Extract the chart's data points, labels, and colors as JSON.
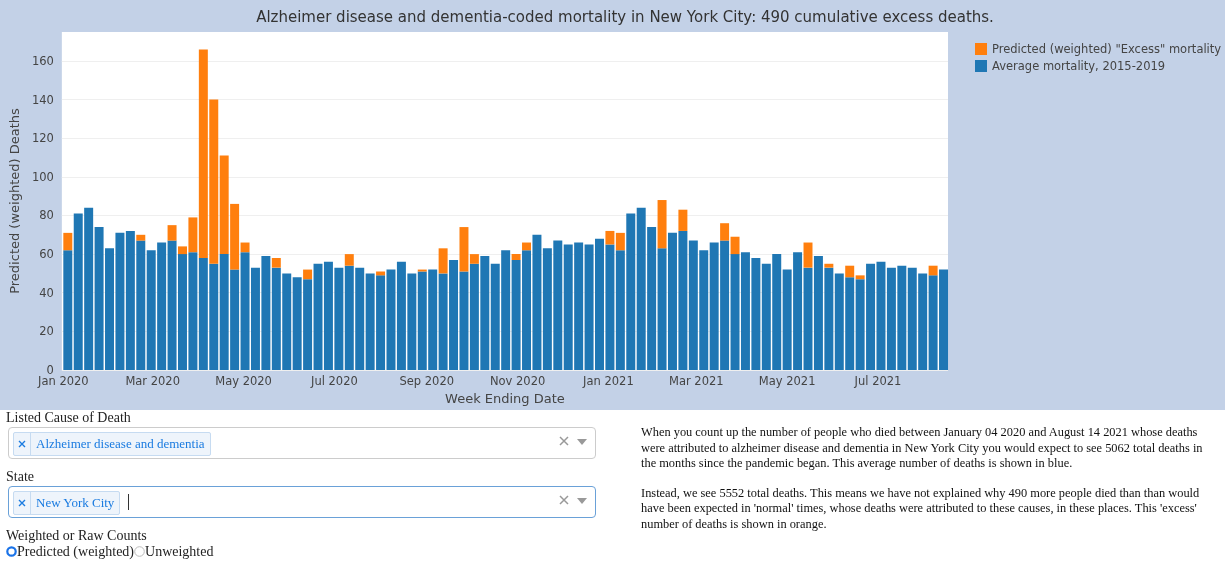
{
  "chart_data": {
    "type": "bar",
    "stacked": true,
    "title": "Alzheimer disease and dementia-coded mortality in New York City: 490 cumulative excess deaths.",
    "xlabel": "Week Ending Date",
    "ylabel": "Predicted (weighted) Deaths",
    "x": [
      "2020-01-04",
      "2020-01-11",
      "2020-01-18",
      "2020-01-25",
      "2020-02-01",
      "2020-02-08",
      "2020-02-15",
      "2020-02-22",
      "2020-02-29",
      "2020-03-07",
      "2020-03-14",
      "2020-03-21",
      "2020-03-28",
      "2020-04-04",
      "2020-04-11",
      "2020-04-18",
      "2020-04-25",
      "2020-05-02",
      "2020-05-09",
      "2020-05-16",
      "2020-05-23",
      "2020-05-30",
      "2020-06-06",
      "2020-06-13",
      "2020-06-20",
      "2020-06-27",
      "2020-07-04",
      "2020-07-11",
      "2020-07-18",
      "2020-07-25",
      "2020-08-01",
      "2020-08-08",
      "2020-08-15",
      "2020-08-22",
      "2020-08-29",
      "2020-09-05",
      "2020-09-12",
      "2020-09-19",
      "2020-09-26",
      "2020-10-03",
      "2020-10-10",
      "2020-10-17",
      "2020-10-24",
      "2020-10-31",
      "2020-11-07",
      "2020-11-14",
      "2020-11-21",
      "2020-11-28",
      "2020-12-05",
      "2020-12-12",
      "2020-12-19",
      "2020-12-26",
      "2021-01-02",
      "2021-01-09",
      "2021-01-16",
      "2021-01-23",
      "2021-01-30",
      "2021-02-06",
      "2021-02-13",
      "2021-02-20",
      "2021-02-27",
      "2021-03-06",
      "2021-03-13",
      "2021-03-20",
      "2021-03-27",
      "2021-04-03",
      "2021-04-10",
      "2021-04-17",
      "2021-04-24",
      "2021-05-01",
      "2021-05-08",
      "2021-05-15",
      "2021-05-22",
      "2021-05-29",
      "2021-06-05",
      "2021-06-12",
      "2021-06-19",
      "2021-06-26",
      "2021-07-03",
      "2021-07-10",
      "2021-07-17",
      "2021-07-24",
      "2021-07-31",
      "2021-08-07",
      "2021-08-14"
    ],
    "series": [
      {
        "name": "Average mortality, 2015-2019",
        "color": "#1f77b4",
        "values": [
          62,
          81,
          84,
          74,
          63,
          71,
          72,
          67,
          62,
          66,
          67,
          60,
          61,
          58,
          55,
          60,
          52,
          61,
          53,
          59,
          53,
          50,
          48,
          47,
          55,
          56,
          53,
          54,
          53,
          50,
          49,
          52,
          56,
          50,
          51,
          52,
          50,
          57,
          51,
          55,
          59,
          55,
          62,
          57,
          62,
          70,
          63,
          67,
          65,
          66,
          65,
          68,
          65,
          62,
          81,
          84,
          74,
          63,
          71,
          72,
          67,
          62,
          66,
          67,
          60,
          61,
          58,
          55,
          60,
          52,
          61,
          53,
          59,
          53,
          50,
          48,
          47,
          55,
          56,
          53,
          54,
          53,
          50,
          49,
          52
        ]
      },
      {
        "name": "Predicted (weighted) \"Excess\" mortality",
        "color": "#ff7f0e",
        "values": [
          9,
          null,
          null,
          null,
          null,
          null,
          null,
          3,
          null,
          null,
          8,
          4,
          18,
          108,
          85,
          51,
          34,
          5,
          null,
          null,
          5,
          null,
          null,
          5,
          null,
          null,
          null,
          6,
          null,
          null,
          2,
          null,
          null,
          null,
          1,
          null,
          13,
          null,
          23,
          5,
          null,
          null,
          null,
          3,
          4,
          null,
          null,
          null,
          null,
          null,
          null,
          null,
          7,
          9,
          null,
          null,
          null,
          25,
          null,
          11,
          null,
          null,
          null,
          9,
          9,
          null,
          null,
          null,
          null,
          null,
          null,
          13,
          null,
          2,
          null,
          6,
          2,
          null,
          null,
          null,
          null,
          null,
          null,
          5,
          null
        ]
      }
    ],
    "xlim": [
      "2019-12-31",
      "2021-08-17"
    ],
    "xticks": [
      {
        "value": "2020-01-01",
        "label": "Jan 2020"
      },
      {
        "value": "2020-03-01",
        "label": "Mar 2020"
      },
      {
        "value": "2020-05-01",
        "label": "May 2020"
      },
      {
        "value": "2020-07-01",
        "label": "Jul 2020"
      },
      {
        "value": "2020-09-01",
        "label": "Sep 2020"
      },
      {
        "value": "2020-11-01",
        "label": "Nov 2020"
      },
      {
        "value": "2021-01-01",
        "label": "Jan 2021"
      },
      {
        "value": "2021-03-01",
        "label": "Mar 2021"
      },
      {
        "value": "2021-05-01",
        "label": "May 2021"
      },
      {
        "value": "2021-07-01",
        "label": "Jul 2021"
      }
    ],
    "ylim": [
      0,
      175
    ],
    "yticks": [
      0,
      20,
      40,
      60,
      80,
      100,
      120,
      140,
      160
    ],
    "grid": "y",
    "legend": "top right",
    "annotations": [
      "Listed Cause of Death",
      "Alzheimer disease and dementia",
      "State",
      "New York City",
      "Weighted or Raw Counts",
      "Predicted (weighted)",
      "Unweighted",
      "When you count up the number of people who died between January 04 2020 and August 14 2021 whose deaths were attributed to alzheimer disease and dementia in New York City you would expect to see 5062 total deaths in the months since the pandemic began. This average number of deaths is shown in blue.",
      "Instead, we see 5552 total deaths. This means we have not explained why 490 more people died than than would have been expected in 'normal' times, whose deaths were attributed to these causes, in these places. This 'excess' number of deaths is shown in orange."
    ]
  }
}
